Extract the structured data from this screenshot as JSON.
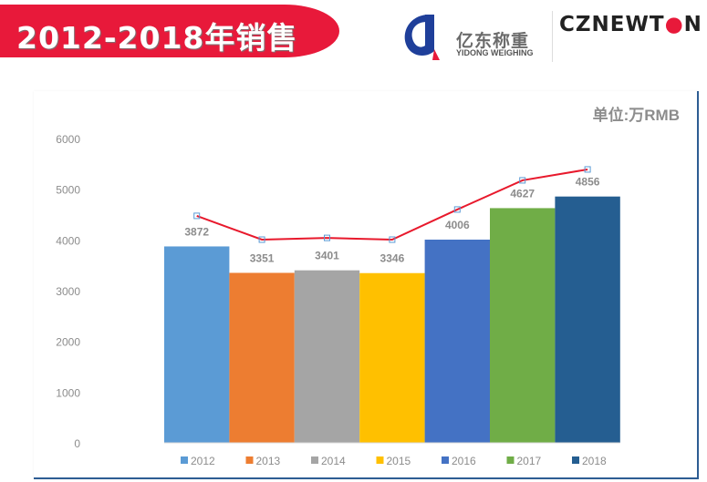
{
  "header": {
    "title": "2012-2018年销售",
    "logo_yidong_cn": "亿东称重",
    "logo_yidong_en": "YIDONG WEIGHING",
    "logo_czn_prefix": "CZNEWT",
    "logo_czn_suffix": "N"
  },
  "colors": {
    "banner": "#e8193a",
    "line": "#e8192c"
  },
  "chart_data": {
    "type": "bar",
    "unit_label": "单位:万RMB",
    "categories": [
      "2012",
      "2013",
      "2014",
      "2015",
      "2016",
      "2017",
      "2018"
    ],
    "values": [
      3872,
      3351,
      3401,
      3346,
      4006,
      4627,
      4856
    ],
    "colors": [
      "#5b9bd5",
      "#ed7d31",
      "#a5a5a5",
      "#ffc000",
      "#4472c4",
      "#70ad47",
      "#255e91"
    ],
    "data_labels": [
      "3872",
      "3351",
      "3401",
      "3346",
      "4006",
      "4627",
      "4856"
    ],
    "line_overlay": {
      "color": "#e8192c",
      "values": [
        4475,
        4006,
        4040,
        4006,
        4600,
        5175,
        5390
      ]
    },
    "ylim": [
      0,
      6000
    ],
    "yticks": [
      "0",
      "1000",
      "2000",
      "3000",
      "4000",
      "5000",
      "6000"
    ],
    "grid": false,
    "legend_position": "bottom",
    "legend": [
      "2012",
      "2013",
      "2014",
      "2015",
      "2016",
      "2017",
      "2018"
    ]
  }
}
